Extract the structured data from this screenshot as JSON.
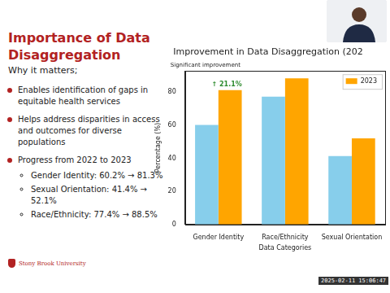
{
  "slide": {
    "title": "Importance of Data Disaggregation",
    "subtitle": "Why it matters;",
    "bullets": [
      {
        "text": "Enables identification of gaps in equitable health services"
      },
      {
        "text": "Helps address disparities in access and outcomes for diverse populations"
      },
      {
        "text": "Progress from 2022 to 2023",
        "items": [
          "Gender Identity: 60.2% → 81.3%",
          "Sexual Orientation: 41.4% → 52.1%",
          "Race/Ethnicity: 77.4% → 88.5%"
        ]
      }
    ],
    "logo": "Stony Brook University",
    "timestamp": "2025-02-11 15:06:47"
  },
  "chart_data": {
    "type": "bar",
    "title": "Improvement in Data Disaggregation (202",
    "x_label": "Data Categories",
    "y_label": "Percentage (%)",
    "categories": [
      "Gender Identity",
      "Race/Ethnicity",
      "Sexual Orientation"
    ],
    "series": [
      {
        "color": "#87ceeb",
        "values": [
          60.2,
          77.4,
          41.4
        ]
      },
      {
        "name": "2023",
        "color": "#ffa500",
        "values": [
          81.3,
          88.5,
          52.1
        ]
      }
    ],
    "ylim": [
      0,
      92.9
    ],
    "yticks": [
      0,
      20,
      40,
      60,
      80
    ],
    "grid": false,
    "legend": "upper right",
    "annotations": [
      "Significant improvement",
      "↑ 21.1%"
    ]
  }
}
